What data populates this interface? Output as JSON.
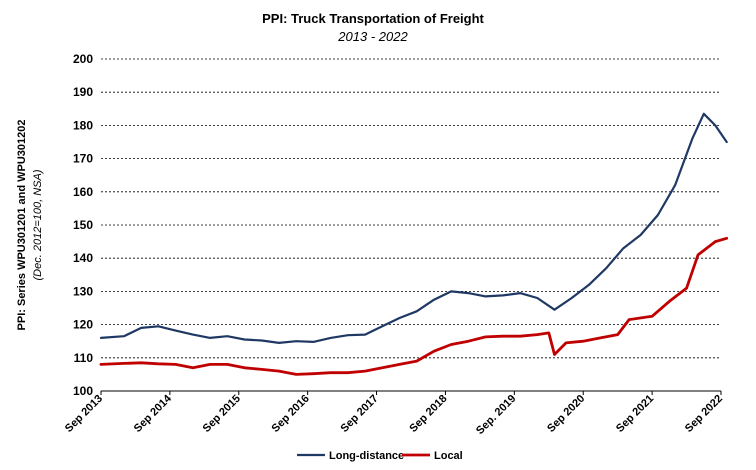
{
  "chart_data": {
    "type": "line",
    "title": "PPI: Truck Transportation of Freight",
    "subtitle": "2013 - 2022",
    "ylabel": "PPI: Series WPU301201 and WPU301202",
    "ylabel_sub": "(Dec. 2012=100, NSA)",
    "ylim": [
      100,
      200
    ],
    "yticks": [
      100,
      110,
      120,
      130,
      140,
      150,
      160,
      170,
      180,
      190,
      200
    ],
    "grid": true,
    "legend_position": "bottom-center",
    "x_tick_labels": [
      "Sep 2013",
      "Sep 2014",
      "Sep 2015",
      "Sep 2016",
      "Sep 2017",
      "Sep 2018",
      "Sep. 2019",
      "Sep 2020",
      "Sep 2021",
      "Sep 2022"
    ],
    "x_tick_dates": [
      "2013-09",
      "2014-09",
      "2015-09",
      "2016-09",
      "2017-09",
      "2018-09",
      "2019-09",
      "2020-09",
      "2021-09",
      "2022-09"
    ],
    "series": [
      {
        "name": "Long-distance",
        "color": "#1f3864",
        "points": [
          [
            "2013-09",
            116
          ],
          [
            "2014-01",
            116.5
          ],
          [
            "2014-04",
            119
          ],
          [
            "2014-07",
            119.5
          ],
          [
            "2014-10",
            118.2
          ],
          [
            "2015-01",
            117
          ],
          [
            "2015-04",
            116
          ],
          [
            "2015-07",
            116.5
          ],
          [
            "2015-10",
            115.5
          ],
          [
            "2016-01",
            115.2
          ],
          [
            "2016-04",
            114.5
          ],
          [
            "2016-07",
            115
          ],
          [
            "2016-10",
            114.8
          ],
          [
            "2017-01",
            116
          ],
          [
            "2017-04",
            116.8
          ],
          [
            "2017-07",
            117
          ],
          [
            "2017-10",
            119.5
          ],
          [
            "2018-01",
            122
          ],
          [
            "2018-04",
            124
          ],
          [
            "2018-07",
            127.5
          ],
          [
            "2018-10",
            130
          ],
          [
            "2019-01",
            129.5
          ],
          [
            "2019-04",
            128.5
          ],
          [
            "2019-07",
            128.8
          ],
          [
            "2019-10",
            129.5
          ],
          [
            "2020-01",
            128
          ],
          [
            "2020-04",
            124.5
          ],
          [
            "2020-07",
            128
          ],
          [
            "2020-10",
            132
          ],
          [
            "2021-01",
            137
          ],
          [
            "2021-04",
            143
          ],
          [
            "2021-07",
            147
          ],
          [
            "2021-10",
            153
          ],
          [
            "2022-01",
            162
          ],
          [
            "2022-04",
            176
          ],
          [
            "2022-06",
            183.5
          ],
          [
            "2022-08",
            180
          ],
          [
            "2022-10",
            175
          ]
        ]
      },
      {
        "name": "Local",
        "color": "#c00000",
        "points": [
          [
            "2013-09",
            108
          ],
          [
            "2014-01",
            108.3
          ],
          [
            "2014-04",
            108.5
          ],
          [
            "2014-07",
            108.2
          ],
          [
            "2014-10",
            108
          ],
          [
            "2015-01",
            107
          ],
          [
            "2015-04",
            108
          ],
          [
            "2015-07",
            108
          ],
          [
            "2015-10",
            107
          ],
          [
            "2016-01",
            106.5
          ],
          [
            "2016-04",
            106
          ],
          [
            "2016-07",
            105
          ],
          [
            "2016-10",
            105.2
          ],
          [
            "2017-01",
            105.5
          ],
          [
            "2017-04",
            105.5
          ],
          [
            "2017-07",
            106
          ],
          [
            "2017-10",
            107
          ],
          [
            "2018-01",
            108
          ],
          [
            "2018-04",
            109
          ],
          [
            "2018-07",
            112
          ],
          [
            "2018-10",
            114
          ],
          [
            "2019-01",
            115
          ],
          [
            "2019-04",
            116.3
          ],
          [
            "2019-07",
            116.5
          ],
          [
            "2019-10",
            116.5
          ],
          [
            "2020-01",
            117
          ],
          [
            "2020-03",
            117.5
          ],
          [
            "2020-04",
            111
          ],
          [
            "2020-06",
            114.5
          ],
          [
            "2020-09",
            115
          ],
          [
            "2020-12",
            116
          ],
          [
            "2021-03",
            117
          ],
          [
            "2021-05",
            121.5
          ],
          [
            "2021-09",
            122.5
          ],
          [
            "2021-12",
            127
          ],
          [
            "2022-03",
            131
          ],
          [
            "2022-05",
            141
          ],
          [
            "2022-08",
            145
          ],
          [
            "2022-10",
            146
          ]
        ]
      }
    ]
  }
}
